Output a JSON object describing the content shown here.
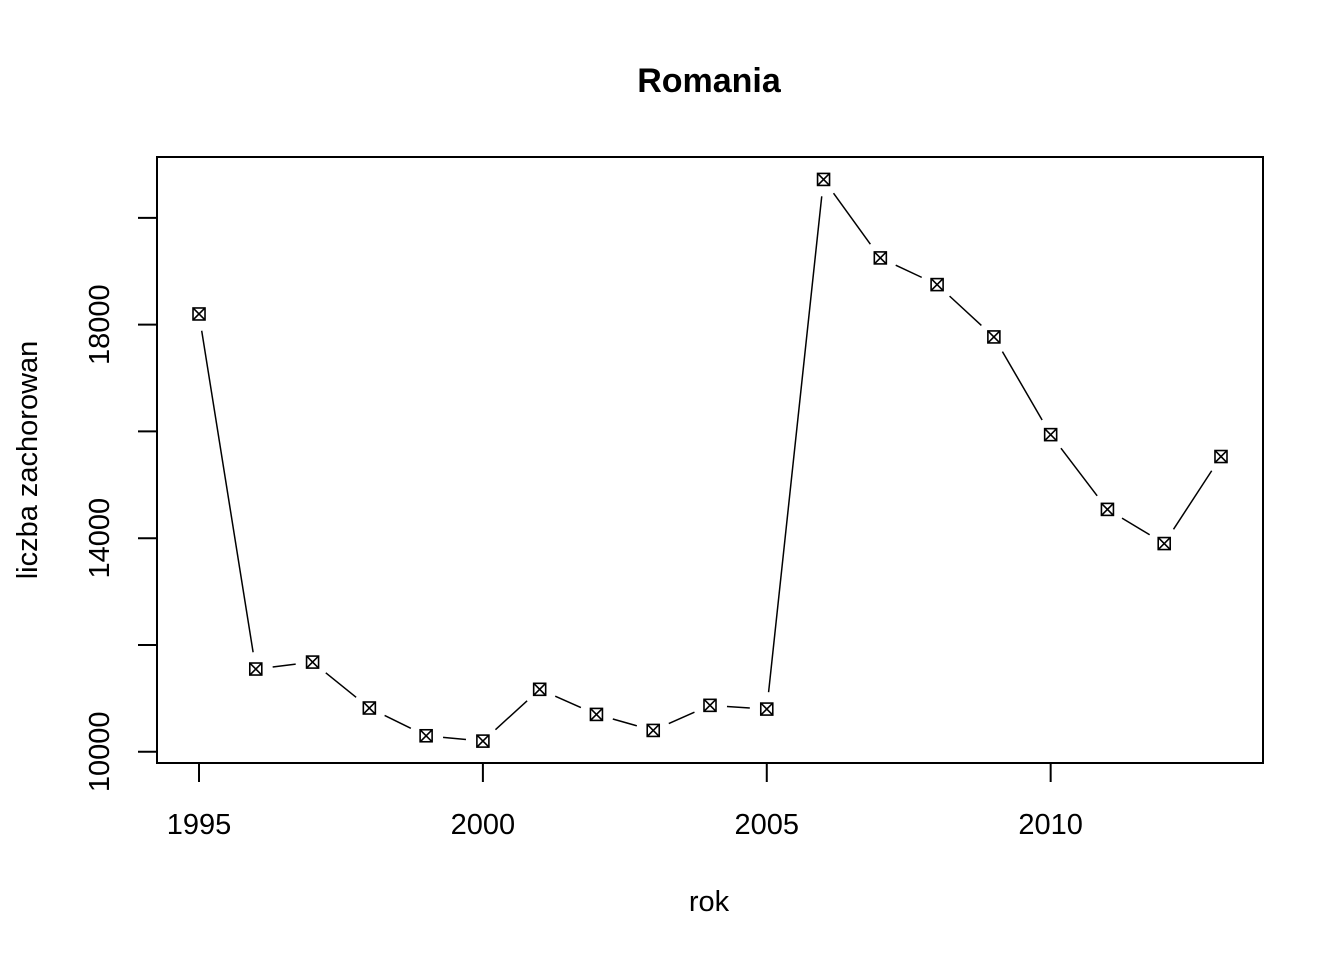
{
  "chart_data": {
    "type": "line",
    "title": "Romania",
    "xlabel": "rok",
    "ylabel": "liczba zachorowan",
    "x": [
      1995,
      1996,
      1997,
      1998,
      1999,
      2000,
      2001,
      2002,
      2003,
      2004,
      2005,
      2006,
      2007,
      2008,
      2009,
      2010,
      2011,
      2012,
      2013
    ],
    "series": [
      {
        "values": [
          18200,
          11550,
          11680,
          10820,
          10300,
          10200,
          11170,
          10700,
          10400,
          10870,
          10800,
          20720,
          19250,
          18750,
          17770,
          15940,
          14540,
          13900,
          15530
        ]
      }
    ],
    "xticks": [
      1995,
      2000,
      2005,
      2010
    ],
    "yticks": [
      10000,
      14000,
      18000
    ],
    "xlim": [
      1994.26,
      2013.74
    ],
    "ylim": [
      9790,
      21140
    ],
    "marker": "boxed-x",
    "line_style": "solid-with-gaps",
    "grid": false,
    "legend": "none",
    "colors": {
      "line": "#000000",
      "background": "#ffffff"
    }
  }
}
